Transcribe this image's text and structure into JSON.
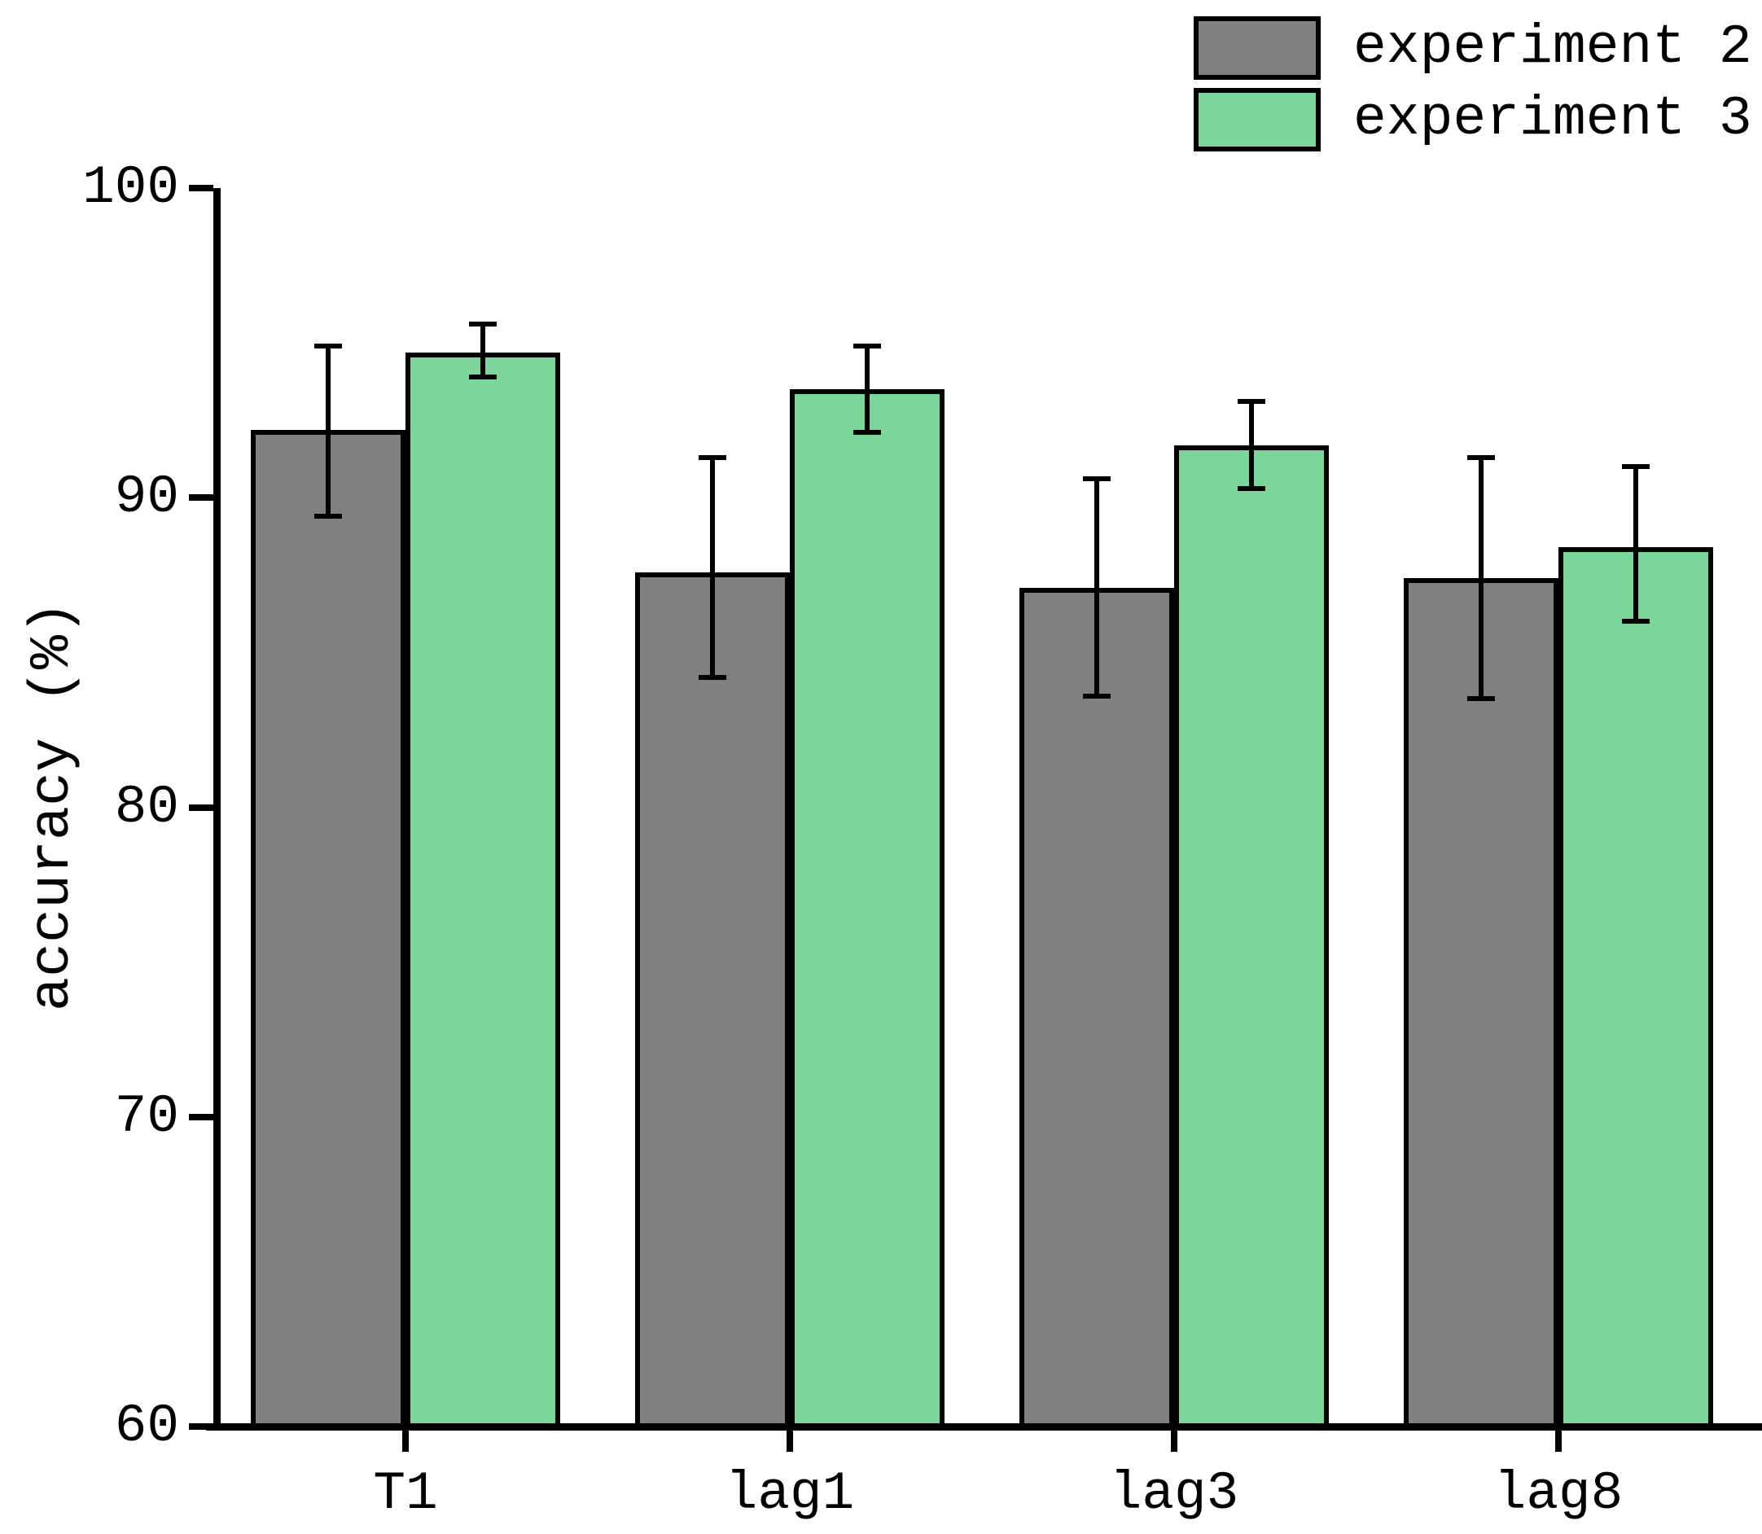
{
  "chart_data": {
    "type": "bar",
    "title": "",
    "xlabel": "",
    "ylabel": "accuracy (%)",
    "categories": [
      "T1",
      "lag1",
      "lag3",
      "lag8"
    ],
    "series": [
      {
        "name": "experiment 2",
        "color": "#808080",
        "values": [
          92.2,
          87.6,
          87.1,
          87.4
        ],
        "error_low": [
          89.4,
          84.2,
          83.6,
          83.5
        ],
        "error_high": [
          94.9,
          91.3,
          90.6,
          91.3
        ]
      },
      {
        "name": "experiment 3",
        "color": "#7cd69c",
        "values": [
          94.7,
          93.5,
          91.7,
          88.4
        ],
        "error_low": [
          93.9,
          92.1,
          90.3,
          86.0
        ],
        "error_high": [
          95.6,
          94.9,
          93.1,
          91.0
        ]
      }
    ],
    "ylim": [
      60,
      100
    ],
    "yticks": [
      100,
      90,
      80,
      70,
      60
    ],
    "grid": false,
    "legend_position": "top-right",
    "error_bars": true,
    "axis_color": "#000000"
  },
  "legend": {
    "items": [
      {
        "label": "experiment 2",
        "color": "#808080"
      },
      {
        "label": "experiment 3",
        "color": "#7cd69c"
      }
    ]
  }
}
